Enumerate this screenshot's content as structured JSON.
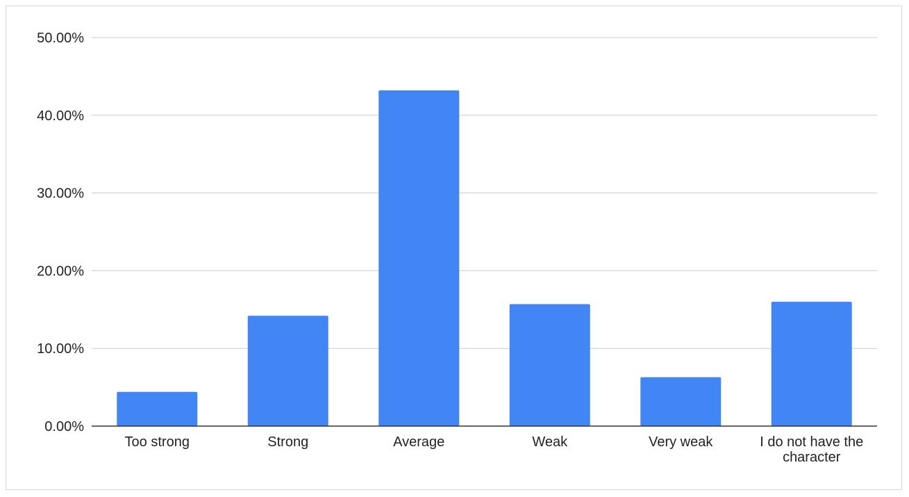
{
  "chart_data": {
    "type": "bar",
    "title": "",
    "xlabel": "",
    "ylabel": "",
    "categories": [
      [
        "Too strong"
      ],
      [
        "Strong"
      ],
      [
        "Average"
      ],
      [
        "Weak"
      ],
      [
        "Very weak"
      ],
      [
        "I do not have the",
        "character"
      ]
    ],
    "values": [
      4.4,
      14.2,
      43.2,
      15.7,
      6.3,
      16.0
    ],
    "ylim": [
      0,
      50
    ],
    "yticks": [
      {
        "value": 0,
        "label": "0.00%"
      },
      {
        "value": 10,
        "label": "10.00%"
      },
      {
        "value": 20,
        "label": "20.00%"
      },
      {
        "value": 30,
        "label": "30.00%"
      },
      {
        "value": 40,
        "label": "40.00%"
      },
      {
        "value": 50,
        "label": "50.00%"
      }
    ],
    "grid": true,
    "legend": "none",
    "colors": {
      "bar": "#4285f4",
      "grid": "#cccccc",
      "axis": "#333333"
    }
  }
}
